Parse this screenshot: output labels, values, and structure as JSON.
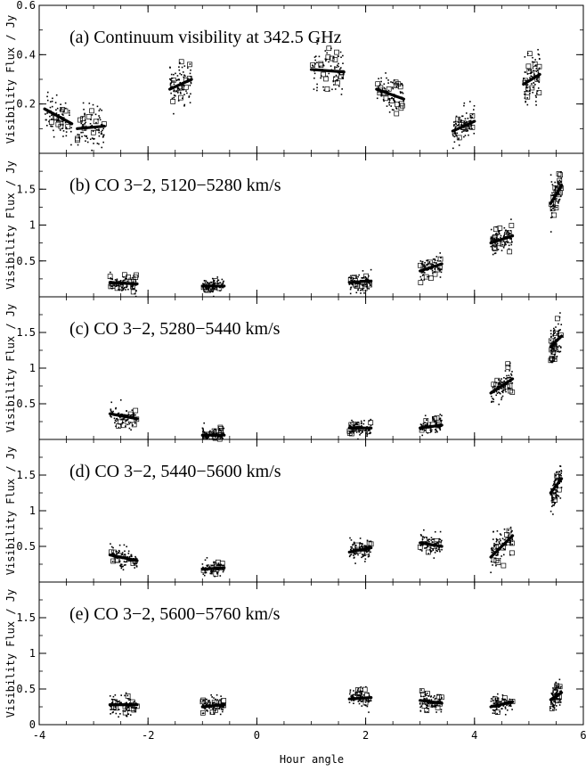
{
  "chart_data": {
    "type": "scatter",
    "xlabel": "Hour angle",
    "xlim": [
      -4,
      6
    ],
    "xticks": [
      -4,
      -2,
      0,
      2,
      4,
      6
    ],
    "panels": [
      {
        "title": "(a) Continuum visibility at 342.5 GHz",
        "ylabel": "Visibility Flux / Jy",
        "ylim": [
          0,
          0.6
        ],
        "yticks": [
          0.2,
          0.4,
          0.6
        ],
        "clusters": [
          {
            "x_range": [
              -3.9,
              -3.4
            ],
            "fit": [
              0.18,
              0.12
            ],
            "spread": 0.07
          },
          {
            "x_range": [
              -3.3,
              -2.8
            ],
            "fit": [
              0.1,
              0.11
            ],
            "spread": 0.07
          },
          {
            "x_range": [
              -1.6,
              -1.2
            ],
            "fit": [
              0.26,
              0.3
            ],
            "spread": 0.08
          },
          {
            "x_range": [
              1.0,
              1.6
            ],
            "fit": [
              0.34,
              0.33
            ],
            "spread": 0.08
          },
          {
            "x_range": [
              2.2,
              2.7
            ],
            "fit": [
              0.26,
              0.22
            ],
            "spread": 0.07
          },
          {
            "x_range": [
              3.6,
              4.0
            ],
            "fit": [
              0.09,
              0.13
            ],
            "spread": 0.06
          },
          {
            "x_range": [
              4.9,
              5.2
            ],
            "fit": [
              0.28,
              0.32
            ],
            "spread": 0.1
          }
        ]
      },
      {
        "title": "(b) CO 3−2, 5120−5280 km/s",
        "ylabel": "Visibility Flux / Jy",
        "ylim": [
          0,
          2
        ],
        "yticks": [
          0.5,
          1,
          1.5
        ],
        "clusters": [
          {
            "x_range": [
              -2.7,
              -2.2
            ],
            "fit": [
              0.2,
              0.18
            ],
            "spread": 0.12
          },
          {
            "x_range": [
              -1.0,
              -0.6
            ],
            "fit": [
              0.15,
              0.15
            ],
            "spread": 0.11
          },
          {
            "x_range": [
              1.7,
              2.1
            ],
            "fit": [
              0.2,
              0.22
            ],
            "spread": 0.12
          },
          {
            "x_range": [
              3.0,
              3.4
            ],
            "fit": [
              0.36,
              0.46
            ],
            "spread": 0.13
          },
          {
            "x_range": [
              4.3,
              4.7
            ],
            "fit": [
              0.75,
              0.85
            ],
            "spread": 0.18
          },
          {
            "x_range": [
              5.4,
              5.6
            ],
            "fit": [
              1.3,
              1.55
            ],
            "spread": 0.22
          }
        ]
      },
      {
        "title": "(c) CO 3−2, 5280−5440 km/s",
        "ylabel": "Visibility Flux / Jy",
        "ylim": [
          0,
          2
        ],
        "yticks": [
          0.5,
          1,
          1.5
        ],
        "clusters": [
          {
            "x_range": [
              -2.7,
              -2.2
            ],
            "fit": [
              0.36,
              0.29
            ],
            "spread": 0.12
          },
          {
            "x_range": [
              -1.0,
              -0.6
            ],
            "fit": [
              0.06,
              0.06
            ],
            "spread": 0.09
          },
          {
            "x_range": [
              1.7,
              2.1
            ],
            "fit": [
              0.16,
              0.16
            ],
            "spread": 0.11
          },
          {
            "x_range": [
              3.0,
              3.4
            ],
            "fit": [
              0.16,
              0.2
            ],
            "spread": 0.11
          },
          {
            "x_range": [
              4.3,
              4.7
            ],
            "fit": [
              0.65,
              0.85
            ],
            "spread": 0.2
          },
          {
            "x_range": [
              5.4,
              5.6
            ],
            "fit": [
              1.3,
              1.45
            ],
            "spread": 0.22
          }
        ]
      },
      {
        "title": "(d) CO 3−2, 5440−5600 km/s",
        "ylabel": "Visibility Flux / Jy",
        "ylim": [
          0,
          2
        ],
        "yticks": [
          0.5,
          1,
          1.5
        ],
        "clusters": [
          {
            "x_range": [
              -2.7,
              -2.2
            ],
            "fit": [
              0.38,
              0.3
            ],
            "spread": 0.12
          },
          {
            "x_range": [
              -1.0,
              -0.6
            ],
            "fit": [
              0.18,
              0.2
            ],
            "spread": 0.11
          },
          {
            "x_range": [
              1.7,
              2.1
            ],
            "fit": [
              0.42,
              0.48
            ],
            "spread": 0.12
          },
          {
            "x_range": [
              3.0,
              3.4
            ],
            "fit": [
              0.55,
              0.5
            ],
            "spread": 0.14
          },
          {
            "x_range": [
              4.3,
              4.7
            ],
            "fit": [
              0.35,
              0.65
            ],
            "spread": 0.2
          },
          {
            "x_range": [
              5.4,
              5.6
            ],
            "fit": [
              1.25,
              1.45
            ],
            "spread": 0.22
          }
        ]
      },
      {
        "title": "(e) CO 3−2, 5600−5760 km/s",
        "ylabel": "Visibility Flux / Jy",
        "ylim": [
          0,
          2
        ],
        "yticks": [
          0,
          0.5,
          1,
          1.5
        ],
        "clusters": [
          {
            "x_range": [
              -2.7,
              -2.2
            ],
            "fit": [
              0.28,
              0.28
            ],
            "spread": 0.12
          },
          {
            "x_range": [
              -1.0,
              -0.6
            ],
            "fit": [
              0.25,
              0.28
            ],
            "spread": 0.12
          },
          {
            "x_range": [
              1.7,
              2.1
            ],
            "fit": [
              0.36,
              0.38
            ],
            "spread": 0.12
          },
          {
            "x_range": [
              3.0,
              3.4
            ],
            "fit": [
              0.34,
              0.3
            ],
            "spread": 0.12
          },
          {
            "x_range": [
              4.3,
              4.7
            ],
            "fit": [
              0.25,
              0.32
            ],
            "spread": 0.12
          },
          {
            "x_range": [
              5.4,
              5.6
            ],
            "fit": [
              0.35,
              0.45
            ],
            "spread": 0.16
          }
        ]
      }
    ]
  }
}
